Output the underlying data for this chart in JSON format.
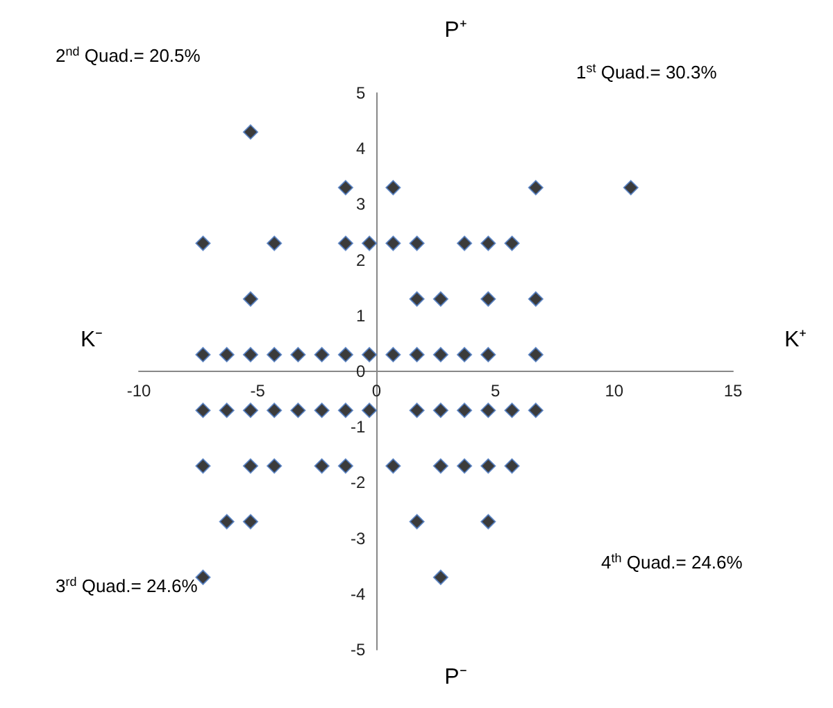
{
  "chart_data": {
    "type": "scatter",
    "annotations": [
      "P⁺",
      "P⁻",
      "K⁻",
      "K⁺",
      "2$^{nd}$ Quad.= 20.5%",
      "1$^{st}$ Quad.= 30.3%",
      "3$^{rd}$ Quad.= 24.6%",
      "4$^{th}$ Quad.= 24.6%"
    ],
    "series": [
      {
        "color": "#0a0a0a",
        "x": [
          -5.3,
          -1.3,
          0.7,
          6.7,
          10.7,
          -7.3,
          -4.3,
          -1.3,
          -0.3,
          0.7,
          1.7,
          3.7,
          4.7,
          5.7,
          -5.3,
          1.7,
          2.7,
          4.7,
          6.7,
          -7.3,
          -6.3,
          -5.3,
          -4.3,
          -3.3,
          -2.3,
          -1.3,
          -0.3,
          0.7,
          1.7,
          2.7,
          3.7,
          4.7,
          6.7,
          -7.3,
          -6.3,
          -5.3,
          -4.3,
          -3.3,
          -2.3,
          -1.3,
          -0.3,
          1.7,
          2.7,
          3.7,
          4.7,
          5.7,
          6.7,
          -7.3,
          -5.3,
          -4.3,
          -2.3,
          -1.3,
          0.7,
          2.7,
          3.7,
          4.7,
          5.7,
          -6.3,
          -5.3,
          1.7,
          4.7,
          -7.3,
          2.7
        ],
        "values": [
          4.3,
          3.3,
          3.3,
          3.3,
          3.3,
          2.3,
          2.3,
          2.3,
          2.3,
          2.3,
          2.3,
          2.3,
          2.3,
          2.3,
          1.3,
          1.3,
          1.3,
          1.3,
          1.3,
          0.3,
          0.3,
          0.3,
          0.3,
          0.3,
          0.3,
          0.3,
          0.3,
          0.3,
          0.3,
          0.3,
          0.3,
          0.3,
          0.3,
          -0.7,
          -0.7,
          -0.7,
          -0.7,
          -0.7,
          -0.7,
          -0.7,
          -0.7,
          -0.7,
          -0.7,
          -0.7,
          -0.7,
          -0.7,
          -0.7,
          -1.7,
          -1.7,
          -1.7,
          -1.7,
          -1.7,
          -1.7,
          -1.7,
          -1.7,
          -1.7,
          -1.7,
          -2.7,
          -2.7,
          -2.7,
          -2.7,
          -3.7,
          -3.7
        ]
      }
    ],
    "xlim": [
      -10,
      15
    ],
    "xticks": [
      -10,
      -5,
      0,
      5,
      10,
      15
    ],
    "ylim": [
      -5,
      5
    ],
    "yticks": [
      -5,
      -4,
      -3,
      -2,
      -1,
      0,
      1,
      2,
      3,
      4,
      5
    ],
    "marker": "diamond"
  }
}
